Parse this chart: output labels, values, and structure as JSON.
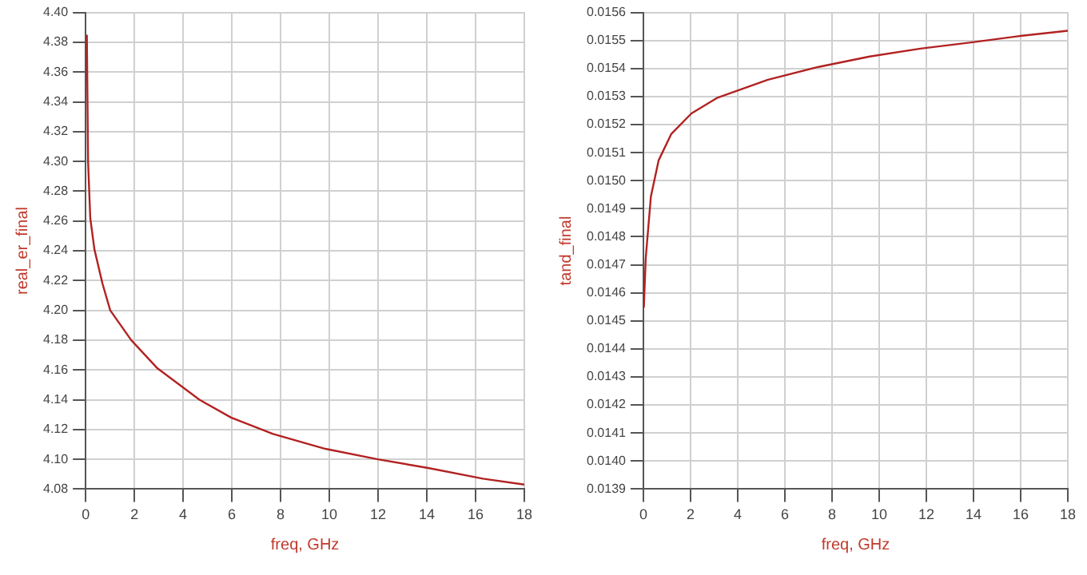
{
  "chart_data": [
    {
      "type": "line",
      "xlabel": "freq, GHz",
      "ylabel": "real_er_final",
      "xlim": [
        0,
        18
      ],
      "xticks": [
        0,
        2,
        4,
        6,
        8,
        10,
        12,
        14,
        16,
        18
      ],
      "ylim": [
        4.08,
        4.4
      ],
      "yticks": [
        4.08,
        {
          "value": 4.1,
          "label": "4.10"
        },
        4.12,
        4.14,
        4.16,
        4.18,
        {
          "value": 4.2,
          "label": "4.20"
        },
        4.22,
        4.24,
        4.26,
        4.28,
        {
          "value": 4.3,
          "label": "4.30"
        },
        4.32,
        4.34,
        4.36,
        4.38,
        {
          "value": 4.4,
          "label": "4.40"
        }
      ],
      "grid": true,
      "legend": false,
      "marker": "none",
      "series": [
        {
          "color": "#b22222",
          "x": [
            0.05,
            0.1,
            0.19,
            0.36,
            0.69,
            1.01,
            1.87,
            2.95,
            4.67,
            5.97,
            7.69,
            9.84,
            11.99,
            14.1,
            16.3,
            18
          ],
          "values": [
            4.385,
            4.3,
            4.262,
            4.241,
            4.218,
            4.2,
            4.18,
            4.161,
            4.14,
            4.128,
            4.117,
            4.107,
            4.1,
            4.094,
            4.087,
            4.083
          ]
        }
      ]
    },
    {
      "type": "line",
      "xlabel": "freq, GHz",
      "ylabel": "tand_final",
      "xlim": [
        0,
        18
      ],
      "xticks": [
        0,
        2,
        4,
        6,
        8,
        10,
        12,
        14,
        16,
        18
      ],
      "ylim": [
        0.0139,
        0.0156
      ],
      "yticks": [
        0.0139,
        {
          "value": 0.014,
          "label": "0.0140"
        },
        0.0141,
        0.0142,
        0.0143,
        0.0144,
        0.0145,
        0.0146,
        0.0147,
        0.0148,
        0.0149,
        {
          "value": 0.015,
          "label": "0.0150"
        },
        0.0151,
        0.0152,
        0.0153,
        0.0154,
        0.0155,
        0.0156
      ],
      "grid": true,
      "legend": false,
      "marker": "none",
      "series": [
        {
          "color": "#b22222",
          "x": [
            0.02,
            0.1,
            0.32,
            0.65,
            1.18,
            2.04,
            3.12,
            5.28,
            7.44,
            9.6,
            11.75,
            13.9,
            16.06,
            18
          ],
          "values": [
            0.014547,
            0.014723,
            0.014944,
            0.015073,
            0.015166,
            0.01524,
            0.015295,
            0.01536,
            0.015406,
            0.015443,
            0.015471,
            0.015493,
            0.015517,
            0.015535
          ]
        }
      ]
    }
  ]
}
